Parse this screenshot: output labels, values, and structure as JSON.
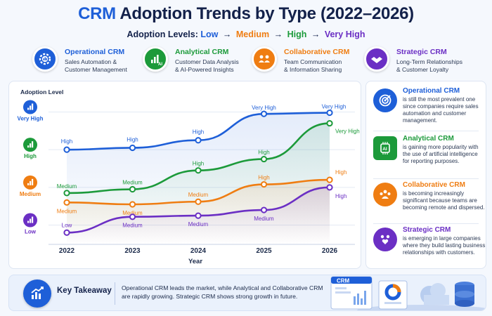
{
  "header": {
    "title_accent": "CRM",
    "title_rest": "Adoption Trends by Type (2022–2026)",
    "levels_prefix": "Adoption Levels:",
    "level_low": "Low",
    "level_medium": "Medium",
    "level_high": "High",
    "level_very_high": "Very High",
    "arrow": "→"
  },
  "types": [
    {
      "name": "Operational CRM",
      "line1": "Sales Automation &",
      "line2": "Customer Management",
      "color": "#1e5fd8",
      "icon": "gear-chart-icon"
    },
    {
      "name": "Analytical CRM",
      "line1": "Customer Data Analysis",
      "line2": "& AI-Powered Insights",
      "color": "#1c9a3a",
      "icon": "ai-chart-icon"
    },
    {
      "name": "Collaborative CRM",
      "line1": "Team Communication",
      "line2": "& Information Sharing",
      "color": "#ef7d12",
      "icon": "team-icon"
    },
    {
      "name": "Strategic CRM",
      "line1": "Long-Term Relationships",
      "line2": "& Customer Loyalty",
      "color": "#6b2fc4",
      "icon": "handshake-icon"
    }
  ],
  "chart_data": {
    "type": "line",
    "ylabel": "Adoption Level",
    "xlabel": "Year",
    "categories": [
      "2022",
      "2023",
      "2024",
      "2025",
      "2026"
    ],
    "y_levels": [
      "Low",
      "Medium",
      "High",
      "Very High"
    ],
    "y_level_icons": [
      "bar-chart-icon",
      "bar-chart-icon",
      "bar-chart-icon",
      "bar-chart-icon"
    ],
    "y_level_colors": [
      "#6b2fc4",
      "#ef7d12",
      "#1c9a3a",
      "#1e5fd8"
    ],
    "ylim": [
      0.6,
      4.4
    ],
    "grid": true,
    "series": [
      {
        "name": "Operational CRM",
        "color": "#1e5fd8",
        "values": [
          3.0,
          3.05,
          3.25,
          3.95,
          3.98
        ],
        "labels": [
          "High",
          "High",
          "High",
          "Very High",
          "Very High"
        ]
      },
      {
        "name": "Analytical CRM",
        "color": "#1c9a3a",
        "values": [
          1.85,
          1.95,
          2.45,
          2.75,
          3.7
        ],
        "labels": [
          "Medium",
          "Medium",
          "High",
          "High",
          "Very High"
        ]
      },
      {
        "name": "Collaborative CRM",
        "color": "#ef7d12",
        "values": [
          1.6,
          1.55,
          1.62,
          2.08,
          2.2
        ],
        "labels": [
          "Medium",
          "Medium",
          "Medium",
          "High",
          "High"
        ]
      },
      {
        "name": "Strategic CRM",
        "color": "#6b2fc4",
        "values": [
          0.8,
          1.22,
          1.25,
          1.4,
          2.0
        ],
        "labels": [
          "Low",
          "Medium",
          "Medium",
          "Medium",
          "High"
        ]
      }
    ]
  },
  "side": [
    {
      "name": "Operational CRM",
      "desc": "is still the most prevalent one since companies require sales automation and customer management.",
      "color": "#1e5fd8",
      "icon": "target-icon"
    },
    {
      "name": "Analytical CRM",
      "desc": "is gaining more popularity with the use of artificial intelligence for reporting purposes.",
      "color": "#1c9a3a",
      "icon": "ai-chip-icon"
    },
    {
      "name": "Collaborative CRM",
      "desc": "is becoming increasingly significant because teams are becoming remote and dispersed.",
      "color": "#ef7d12",
      "icon": "team-icon"
    },
    {
      "name": "Strategic CRM",
      "desc": "is emerging in large companies where they build lasting business relationships with customers.",
      "color": "#6b2fc4",
      "icon": "people-heart-icon"
    }
  ],
  "takeaway": {
    "label": "Key Takeaway",
    "text": "Operational CRM leads the market, while Analytical and Collaborative CRM are rapidly growing. Strategic CRM shows strong growth in future.",
    "art_label": "CRM",
    "icon": "growth-chart-icon"
  }
}
